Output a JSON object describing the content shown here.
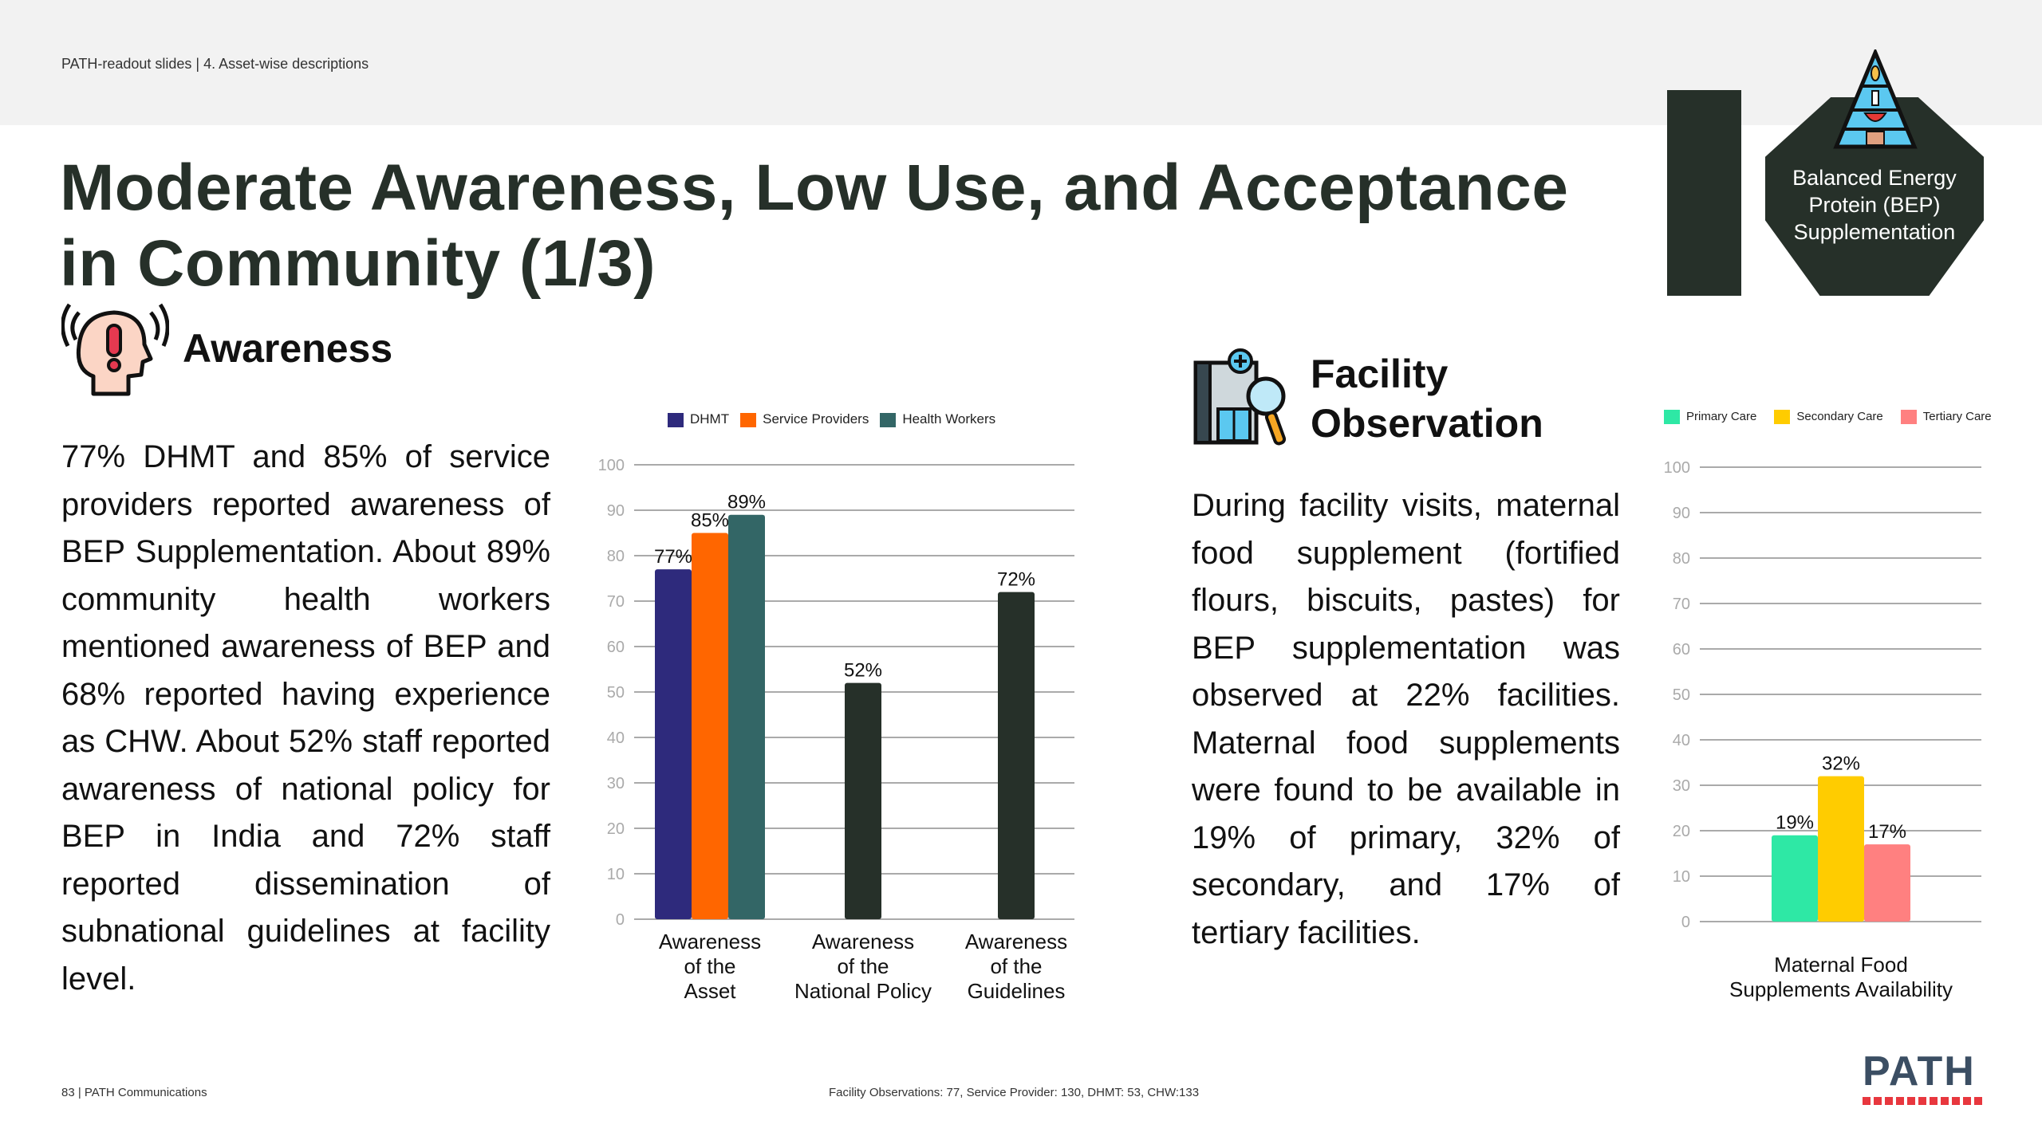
{
  "header": {
    "breadcrumb": "PATH-readout slides  |  4. Asset-wise descriptions"
  },
  "title": {
    "line1": "Moderate Awareness, Low Use, and Acceptance",
    "line2": "in Community (1/3)"
  },
  "badge": {
    "line1": "Balanced Energy",
    "line2": "Protein (BEP)",
    "line3": "Supplementation",
    "icon": "food-pyramid-icon"
  },
  "awareness": {
    "heading": "Awareness",
    "icon": "alert-head-icon",
    "text": "77% DHMT and 85% of service providers reported awareness of BEP Supplementation. About 89% community health workers mentioned awareness of BEP and 68% reported having experience as CHW. About 52% staff reported awareness of national policy for BEP in India and 72% staff reported dissemination of subnational guidelines at facility level."
  },
  "facility": {
    "heading1": "Facility",
    "heading2": "Observation",
    "icon": "facility-inspection-icon",
    "text": "During facility visits, maternal food supplement (fortified flours, biscuits, pastes) for BEP supplementation was observed at 22% facilities. Maternal food supplements were found to be available in 19% of primary, 32% of secondary, and 17% of tertiary facilities."
  },
  "chart_data": [
    {
      "type": "bar",
      "title": "",
      "xlabel": "",
      "ylabel": "",
      "ylim": [
        0,
        100
      ],
      "yticks": [
        "0",
        "10",
        "20",
        "30",
        "40",
        "50",
        "60",
        "70",
        "80",
        "90",
        "100"
      ],
      "grid": true,
      "legend_position": "top",
      "legend": [
        {
          "name": "DHMT",
          "color": "#2e2a7c"
        },
        {
          "name": "Service Providers",
          "color": "#ff6600"
        },
        {
          "name": "Health Workers",
          "color": "#336666"
        }
      ],
      "categories": [
        [
          "Awareness",
          "of the",
          "Asset"
        ],
        [
          "Awareness",
          "of the",
          "National Policy"
        ],
        [
          "Awareness",
          "of the",
          "Guidelines"
        ]
      ],
      "bars": [
        [
          {
            "series": "DHMT",
            "value": 77,
            "label": "77%",
            "color": "#2e2a7c"
          },
          {
            "series": "Service Providers",
            "value": 85,
            "label": "85%",
            "color": "#ff6600"
          },
          {
            "series": "Health Workers",
            "value": 89,
            "label": "89%",
            "color": "#336666"
          }
        ],
        [
          {
            "series": "",
            "value": 52,
            "label": "52%",
            "color": "#263029"
          }
        ],
        [
          {
            "series": "",
            "value": 72,
            "label": "72%",
            "color": "#263029"
          }
        ]
      ]
    },
    {
      "type": "bar",
      "title": "",
      "xlabel": "",
      "ylabel": "",
      "ylim": [
        0,
        100
      ],
      "yticks": [
        "0",
        "10",
        "20",
        "30",
        "40",
        "50",
        "60",
        "70",
        "80",
        "90",
        "100"
      ],
      "grid": true,
      "legend_position": "top",
      "legend": [
        {
          "name": "Primary Care",
          "color": "#2ee8a5"
        },
        {
          "name": "Secondary Care",
          "color": "#ffcc00"
        },
        {
          "name": "Tertiary Care",
          "color": "#ff8080"
        }
      ],
      "categories": [
        [
          "Maternal Food",
          "Supplements Availability"
        ]
      ],
      "bars": [
        [
          {
            "series": "Primary Care",
            "value": 19,
            "label": "19%",
            "color": "#2ee8a5"
          },
          {
            "series": "Secondary Care",
            "value": 32,
            "label": "32%",
            "color": "#ffcc00"
          },
          {
            "series": "Tertiary Care",
            "value": 17,
            "label": "17%",
            "color": "#ff8080"
          }
        ]
      ]
    }
  ],
  "footer": {
    "page": "83 | PATH Communications",
    "sample": "Facility Observations: 77, Service Provider: 130, DHMT: 53, CHW:133",
    "logo": "PATH"
  }
}
